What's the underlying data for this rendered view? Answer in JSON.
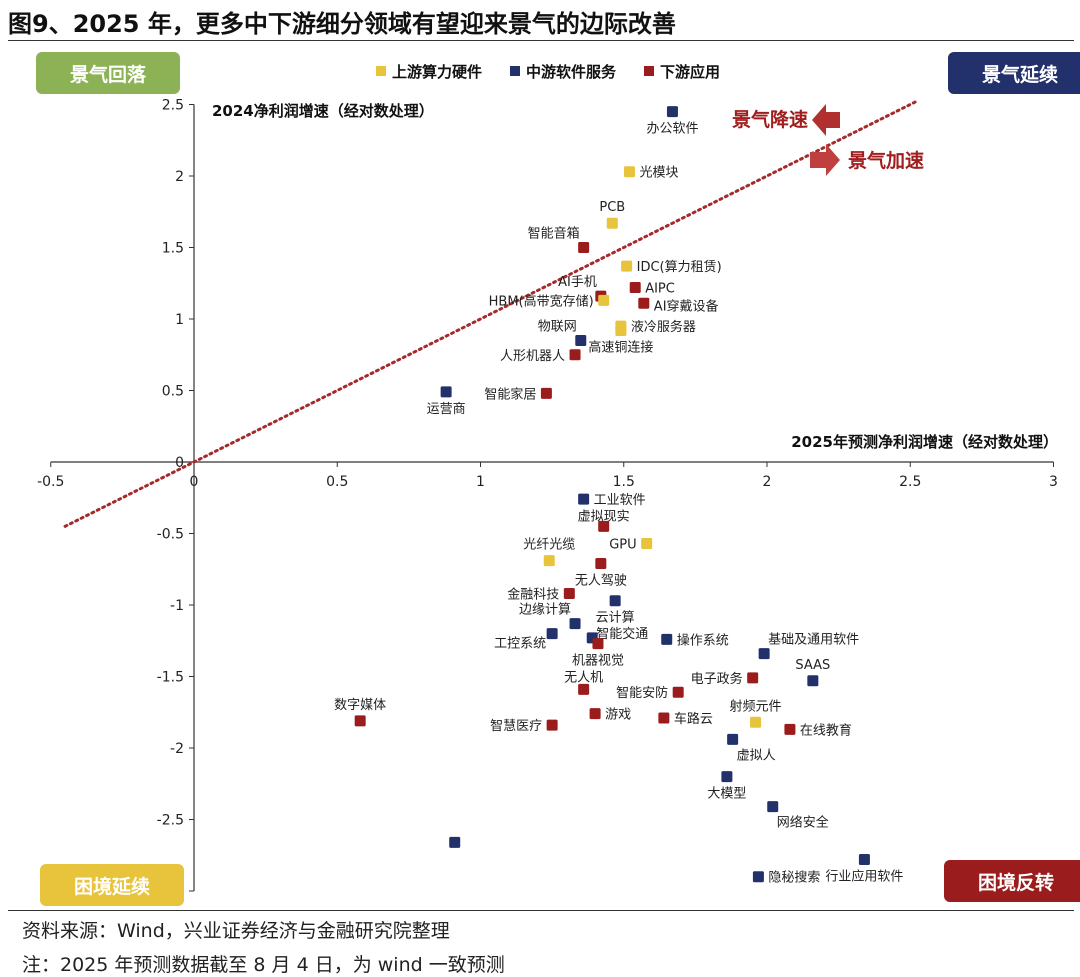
{
  "title": "图9、2025 年，更多中下游细分领域有望迎来景气的边际改善",
  "quadrants": {
    "top_left": {
      "label": "景气回落",
      "color": "#8DB255"
    },
    "top_right": {
      "label": "景气延续",
      "color": "#22306B"
    },
    "bottom_left": {
      "label": "困境延续",
      "color": "#E8C33C"
    },
    "bottom_right": {
      "label": "困境反转",
      "color": "#9B1C1C"
    }
  },
  "annotations": {
    "slowdown": "景气降速",
    "speedup": "景气加速"
  },
  "notes": {
    "source": "资料来源：Wind，兴业证券经济与金融研究院整理",
    "footnote": "注：2025 年预测数据截至 8 月 4 日，为 wind 一致预测"
  },
  "chart_data": {
    "type": "scatter",
    "xlabel": "2025年预测净利润增速（经对数处理）",
    "ylabel": "2024净利润增速（经对数处理）",
    "xlim": [
      -0.5,
      3
    ],
    "ylim": [
      -3,
      2.5
    ],
    "xticks": [
      "-0.5",
      "0",
      "0.5",
      "1",
      "1.5",
      "2",
      "2.5",
      "3"
    ],
    "xtick_values": [
      -0.5,
      0,
      0.5,
      1,
      1.5,
      2,
      2.5,
      3
    ],
    "yticks": [
      "2.5",
      "2",
      "1.5",
      "1",
      "0.5",
      "0",
      "-0.5",
      "-1",
      "-1.5",
      "-2",
      "-2.5"
    ],
    "ytick_values": [
      2.5,
      2,
      1.5,
      1,
      0.5,
      0,
      -0.5,
      -1,
      -1.5,
      -2,
      -2.5
    ],
    "grid": false,
    "legend_position": "top-center",
    "reference_line": {
      "slope": 1,
      "intercept": 0,
      "style": "dotted",
      "color": "#A52A2A"
    },
    "series": [
      {
        "name": "上游算力硬件",
        "color": "#E8C33C"
      },
      {
        "name": "中游软件服务",
        "color": "#22306B"
      },
      {
        "name": "下游应用",
        "color": "#9B1C1C"
      }
    ],
    "points": [
      {
        "label": "办公软件",
        "series": 1,
        "x": 1.67,
        "y": 2.45,
        "pos": "below"
      },
      {
        "label": "光模块",
        "series": 0,
        "x": 1.52,
        "y": 2.03,
        "pos": "right"
      },
      {
        "label": "PCB",
        "series": 0,
        "x": 1.46,
        "y": 1.67,
        "pos": "above"
      },
      {
        "label": "智能音箱",
        "series": 2,
        "x": 1.36,
        "y": 1.5,
        "pos": "above-left"
      },
      {
        "label": "IDC(算力租赁)",
        "series": 0,
        "x": 1.51,
        "y": 1.37,
        "pos": "right"
      },
      {
        "label": "AIPC",
        "series": 2,
        "x": 1.54,
        "y": 1.22,
        "pos": "right"
      },
      {
        "label": "AI手机",
        "series": 2,
        "x": 1.42,
        "y": 1.16,
        "pos": "above-left"
      },
      {
        "label": "HBM(高带宽存储)",
        "series": 0,
        "x": 1.43,
        "y": 1.13,
        "pos": "left"
      },
      {
        "label": "AI穿戴设备",
        "series": 2,
        "x": 1.57,
        "y": 1.11,
        "pos": "right"
      },
      {
        "label": "液冷服务器",
        "series": 0,
        "x": 1.49,
        "y": 0.95,
        "pos": "right"
      },
      {
        "label": "高速铜连接",
        "series": 0,
        "x": 1.49,
        "y": 0.92,
        "pos": "below"
      },
      {
        "label": "物联网",
        "series": 1,
        "x": 1.35,
        "y": 0.85,
        "pos": "above-left"
      },
      {
        "label": "人形机器人",
        "series": 2,
        "x": 1.33,
        "y": 0.75,
        "pos": "left"
      },
      {
        "label": "运营商",
        "series": 1,
        "x": 0.88,
        "y": 0.49,
        "pos": "below"
      },
      {
        "label": "智能家居",
        "series": 2,
        "x": 1.23,
        "y": 0.48,
        "pos": "left"
      },
      {
        "label": "工业软件",
        "series": 1,
        "x": 1.36,
        "y": -0.26,
        "pos": "right"
      },
      {
        "label": "虚拟现实",
        "series": 2,
        "x": 1.43,
        "y": -0.45,
        "pos": "above"
      },
      {
        "label": "GPU",
        "series": 0,
        "x": 1.58,
        "y": -0.57,
        "pos": "left"
      },
      {
        "label": "光纤光缆",
        "series": 0,
        "x": 1.24,
        "y": -0.69,
        "pos": "above"
      },
      {
        "label": "无人驾驶",
        "series": 2,
        "x": 1.42,
        "y": -0.71,
        "pos": "below"
      },
      {
        "label": "金融科技",
        "series": 2,
        "x": 1.31,
        "y": -0.92,
        "pos": "left"
      },
      {
        "label": "云计算",
        "series": 1,
        "x": 1.47,
        "y": -0.97,
        "pos": "below"
      },
      {
        "label": "边缘计算",
        "series": 1,
        "x": 1.33,
        "y": -1.13,
        "pos": "above-left"
      },
      {
        "label": "工控系统",
        "series": 1,
        "x": 1.25,
        "y": -1.2,
        "pos": "below-left"
      },
      {
        "label": "智能交通",
        "series": 1,
        "x": 1.39,
        "y": -1.23,
        "pos": "above-right"
      },
      {
        "label": "机器视觉",
        "series": 2,
        "x": 1.41,
        "y": -1.27,
        "pos": "below"
      },
      {
        "label": "操作系统",
        "series": 1,
        "x": 1.65,
        "y": -1.24,
        "pos": "right"
      },
      {
        "label": "基础及通用软件",
        "series": 1,
        "x": 1.99,
        "y": -1.34,
        "pos": "above-right"
      },
      {
        "label": "SAAS",
        "series": 1,
        "x": 2.16,
        "y": -1.53,
        "pos": "above"
      },
      {
        "label": "电子政务",
        "series": 2,
        "x": 1.95,
        "y": -1.51,
        "pos": "left"
      },
      {
        "label": "无人机",
        "series": 2,
        "x": 1.36,
        "y": -1.59,
        "pos": "above"
      },
      {
        "label": "智能安防",
        "series": 2,
        "x": 1.69,
        "y": -1.61,
        "pos": "left"
      },
      {
        "label": "数字媒体",
        "series": 2,
        "x": 0.58,
        "y": -1.81,
        "pos": "above"
      },
      {
        "label": "游戏",
        "series": 2,
        "x": 1.4,
        "y": -1.76,
        "pos": "right"
      },
      {
        "label": "车路云",
        "series": 2,
        "x": 1.64,
        "y": -1.79,
        "pos": "right"
      },
      {
        "label": "射频元件",
        "series": 0,
        "x": 1.96,
        "y": -1.82,
        "pos": "above"
      },
      {
        "label": "在线教育",
        "series": 2,
        "x": 2.08,
        "y": -1.87,
        "pos": "right"
      },
      {
        "label": "智慧医疗",
        "series": 2,
        "x": 1.25,
        "y": -1.84,
        "pos": "left"
      },
      {
        "label": "虚拟人",
        "series": 1,
        "x": 1.88,
        "y": -1.94,
        "pos": "below-right"
      },
      {
        "label": "大模型",
        "series": 1,
        "x": 1.86,
        "y": -2.2,
        "pos": "below"
      },
      {
        "label": "网络安全",
        "series": 1,
        "x": 2.02,
        "y": -2.41,
        "pos": "below-right"
      },
      {
        "label": "",
        "series": 1,
        "x": 0.91,
        "y": -2.66,
        "pos": "none"
      },
      {
        "label": "行业应用软件",
        "series": 1,
        "x": 2.34,
        "y": -2.78,
        "pos": "below"
      },
      {
        "label": "隐秘搜索",
        "series": 1,
        "x": 1.97,
        "y": -2.9,
        "pos": "right"
      }
    ]
  }
}
